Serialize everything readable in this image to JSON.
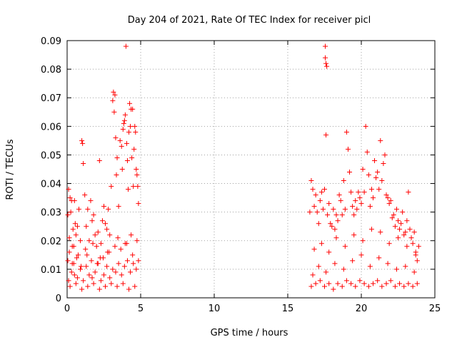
{
  "chart_data": {
    "type": "scatter",
    "title": "Day 204 of 2021, Rate Of TEC Index for receiver picl",
    "xlabel": "GPS time / hours",
    "ylabel": "ROTI / TECUs",
    "xlim": [
      0,
      25
    ],
    "ylim": [
      0,
      0.09
    ],
    "xticks": [
      0,
      5,
      10,
      15,
      20,
      25
    ],
    "yticks": [
      0,
      0.01,
      0.02,
      0.03,
      0.04,
      0.05,
      0.06,
      0.07,
      0.08,
      0.09
    ],
    "xtick_labels": [
      "0",
      "5",
      "10",
      "15",
      "20",
      "25"
    ],
    "ytick_labels": [
      "0",
      "0.01",
      "0.02",
      "0.03",
      "0.04",
      "0.05",
      "0.06",
      "0.07",
      "0.08",
      "0.09"
    ],
    "grid": true,
    "marker": "+",
    "color": "#ff0000",
    "series": [
      {
        "x": [
          0.05,
          0.1,
          0.15,
          0.2,
          0.25,
          0.3,
          0.35,
          0.4,
          0.45,
          0.5,
          0.55,
          0.6,
          0.7,
          0.8,
          0.9,
          1.0,
          1.05,
          1.1,
          1.2,
          1.3,
          1.4,
          1.5,
          1.6,
          1.7,
          1.8,
          1.9,
          2.0,
          2.1,
          2.2,
          2.3,
          2.4,
          2.5,
          2.6,
          2.7,
          2.8,
          2.9,
          3.0,
          3.1,
          3.15,
          3.2,
          3.25,
          3.3,
          3.35,
          3.4,
          3.5,
          3.6,
          3.7,
          3.75,
          3.8,
          3.85,
          3.9,
          3.95,
          4.0,
          4.05,
          4.1,
          4.15,
          4.2,
          4.25,
          4.3,
          4.35,
          4.4,
          4.45,
          4.5,
          4.55,
          4.6,
          4.65,
          4.7,
          4.75,
          4.8,
          4.85,
          0.1,
          0.3,
          0.5,
          0.7,
          0.9,
          1.1,
          1.3,
          1.5,
          1.7,
          1.9,
          2.1,
          2.3,
          2.5,
          2.7,
          2.9,
          3.1,
          3.3,
          3.5,
          3.7,
          3.9,
          4.1,
          4.3,
          4.5,
          4.7,
          0.2,
          0.6,
          1.0,
          1.4,
          1.8,
          2.2,
          2.6,
          3.0,
          3.4,
          3.8,
          4.2,
          4.6,
          0.15,
          0.45,
          0.75,
          1.25,
          1.75,
          2.25,
          2.75,
          3.45,
          3.95,
          4.35,
          4.75,
          0.05,
          0.35,
          0.65,
          0.95,
          1.35,
          1.65,
          2.05,
          2.45,
          2.85,
          3.25,
          3.65,
          4.05,
          4.45,
          4.85
        ],
        "y": [
          0.029,
          0.038,
          0.021,
          0.035,
          0.03,
          0.034,
          0.018,
          0.024,
          0.012,
          0.034,
          0.026,
          0.022,
          0.025,
          0.031,
          0.02,
          0.055,
          0.054,
          0.047,
          0.036,
          0.025,
          0.031,
          0.02,
          0.034,
          0.027,
          0.029,
          0.022,
          0.018,
          0.023,
          0.048,
          0.019,
          0.027,
          0.032,
          0.026,
          0.024,
          0.031,
          0.022,
          0.039,
          0.069,
          0.072,
          0.065,
          0.071,
          0.056,
          0.043,
          0.049,
          0.032,
          0.055,
          0.053,
          0.045,
          0.059,
          0.061,
          0.062,
          0.064,
          0.088,
          0.054,
          0.048,
          0.038,
          0.058,
          0.068,
          0.06,
          0.066,
          0.049,
          0.066,
          0.039,
          0.052,
          0.06,
          0.058,
          0.045,
          0.043,
          0.039,
          0.033,
          0.006,
          0.009,
          0.008,
          0.007,
          0.01,
          0.006,
          0.011,
          0.008,
          0.007,
          0.009,
          0.012,
          0.006,
          0.008,
          0.011,
          0.007,
          0.01,
          0.009,
          0.012,
          0.008,
          0.011,
          0.013,
          0.009,
          0.012,
          0.01,
          0.004,
          0.005,
          0.003,
          0.004,
          0.005,
          0.003,
          0.004,
          0.005,
          0.004,
          0.005,
          0.003,
          0.004,
          0.016,
          0.018,
          0.015,
          0.017,
          0.019,
          0.014,
          0.016,
          0.021,
          0.019,
          0.022,
          0.02,
          0.013,
          0.012,
          0.014,
          0.011,
          0.015,
          0.013,
          0.012,
          0.014,
          0.016,
          0.018,
          0.017,
          0.019,
          0.015,
          0.013
        ]
      },
      {
        "x": [
          16.5,
          16.6,
          16.7,
          16.8,
          16.9,
          17.0,
          17.1,
          17.2,
          17.3,
          17.4,
          17.5,
          17.55,
          17.6,
          17.7,
          17.8,
          17.9,
          18.0,
          18.1,
          18.2,
          18.3,
          18.4,
          18.5,
          18.6,
          18.7,
          18.8,
          18.9,
          19.0,
          19.1,
          19.2,
          19.3,
          19.4,
          19.5,
          19.6,
          19.7,
          19.8,
          19.9,
          20.0,
          20.1,
          20.2,
          20.3,
          20.4,
          20.5,
          20.6,
          20.7,
          20.8,
          20.9,
          21.0,
          21.1,
          21.2,
          21.3,
          21.4,
          21.5,
          21.6,
          21.7,
          21.8,
          21.9,
          22.0,
          22.1,
          22.2,
          22.3,
          22.4,
          22.5,
          22.6,
          22.7,
          22.8,
          22.9,
          23.0,
          23.1,
          23.2,
          23.3,
          23.4,
          23.5,
          23.6,
          23.7,
          23.8,
          23.9,
          16.6,
          16.9,
          17.2,
          17.5,
          17.8,
          18.1,
          18.4,
          18.7,
          19.0,
          19.3,
          19.6,
          19.9,
          20.2,
          20.5,
          20.8,
          21.1,
          21.4,
          21.7,
          22.0,
          22.3,
          22.6,
          22.9,
          23.2,
          23.5,
          23.8,
          16.7,
          17.1,
          17.6,
          18.2,
          18.8,
          19.4,
          20.0,
          20.6,
          21.2,
          21.8,
          22.4,
          23.0,
          23.6,
          16.8,
          17.3,
          17.8,
          18.3,
          18.9,
          19.5,
          20.1,
          20.7,
          21.3,
          21.9,
          22.5,
          23.1,
          23.7,
          17.55,
          17.6,
          17.65
        ],
        "y": [
          0.03,
          0.041,
          0.038,
          0.032,
          0.036,
          0.03,
          0.026,
          0.034,
          0.037,
          0.031,
          0.038,
          0.088,
          0.057,
          0.029,
          0.033,
          0.026,
          0.025,
          0.031,
          0.024,
          0.029,
          0.027,
          0.036,
          0.034,
          0.029,
          0.041,
          0.031,
          0.058,
          0.052,
          0.044,
          0.037,
          0.032,
          0.029,
          0.034,
          0.031,
          0.037,
          0.035,
          0.033,
          0.045,
          0.037,
          0.06,
          0.051,
          0.043,
          0.032,
          0.038,
          0.035,
          0.048,
          0.042,
          0.044,
          0.038,
          0.055,
          0.041,
          0.047,
          0.05,
          0.036,
          0.035,
          0.033,
          0.034,
          0.028,
          0.029,
          0.025,
          0.031,
          0.027,
          0.024,
          0.026,
          0.03,
          0.022,
          0.023,
          0.027,
          0.037,
          0.024,
          0.021,
          0.019,
          0.023,
          0.016,
          0.013,
          0.018,
          0.004,
          0.005,
          0.006,
          0.004,
          0.005,
          0.003,
          0.005,
          0.004,
          0.006,
          0.005,
          0.004,
          0.006,
          0.005,
          0.004,
          0.005,
          0.006,
          0.004,
          0.005,
          0.006,
          0.004,
          0.005,
          0.004,
          0.005,
          0.004,
          0.005,
          0.008,
          0.011,
          0.009,
          0.012,
          0.01,
          0.013,
          0.015,
          0.011,
          0.014,
          0.012,
          0.01,
          0.011,
          0.009,
          0.017,
          0.019,
          0.016,
          0.021,
          0.018,
          0.022,
          0.02,
          0.024,
          0.023,
          0.019,
          0.021,
          0.018,
          0.015,
          0.084,
          0.082,
          0.081
        ]
      }
    ]
  }
}
